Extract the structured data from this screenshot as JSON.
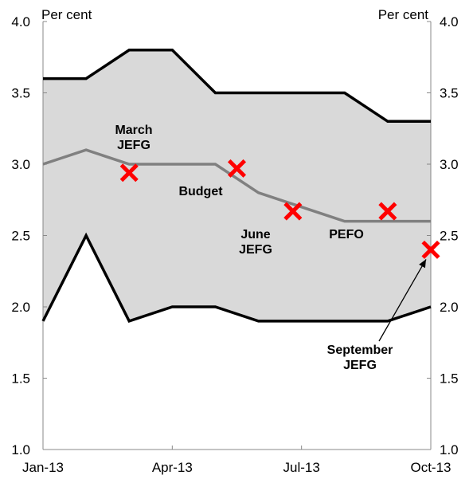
{
  "chart_data": {
    "type": "line",
    "title": "",
    "xlabel": "",
    "ylabel": "",
    "unit_left": "Per cent",
    "unit_right": "Per cent",
    "ylim": [
      1.0,
      4.0
    ],
    "y_ticks": [
      "1.0",
      "1.5",
      "2.0",
      "2.5",
      "3.0",
      "3.5",
      "4.0"
    ],
    "x": [
      "Jan-13",
      "Feb-13",
      "Mar-13",
      "Apr-13",
      "May-13",
      "Jun-13",
      "Jul-13",
      "Aug-13",
      "Sep-13",
      "Oct-13"
    ],
    "x_tick_labels": [
      "Jan-13",
      "Apr-13",
      "Jul-13",
      "Oct-13"
    ],
    "grid": false,
    "series": [
      {
        "key": "upper",
        "values": [
          3.6,
          3.6,
          3.8,
          3.8,
          3.5,
          3.5,
          3.5,
          3.5,
          3.3,
          3.3
        ],
        "color": "#000000"
      },
      {
        "key": "middle",
        "values": [
          3.0,
          3.1,
          3.0,
          3.0,
          3.0,
          2.8,
          2.7,
          2.6,
          2.6,
          2.6
        ],
        "color": "#808080"
      },
      {
        "key": "lower",
        "values": [
          1.9,
          2.5,
          1.9,
          2.0,
          2.0,
          1.9,
          1.9,
          1.9,
          1.9,
          2.0
        ],
        "color": "#000000"
      }
    ],
    "band_color": "#d9d9d9",
    "markers": [
      {
        "x": 2.0,
        "y": 2.94,
        "label": "March\nJEFG"
      },
      {
        "x": 4.5,
        "y": 2.97,
        "label": "Budget"
      },
      {
        "x": 5.8,
        "y": 2.67,
        "label": "June\nJEFG"
      },
      {
        "x": 8.0,
        "y": 2.67,
        "label": "PEFO"
      },
      {
        "x": 9.0,
        "y": 2.4,
        "label": "September\nJEFG"
      }
    ],
    "marker_color": "#ff0000"
  }
}
